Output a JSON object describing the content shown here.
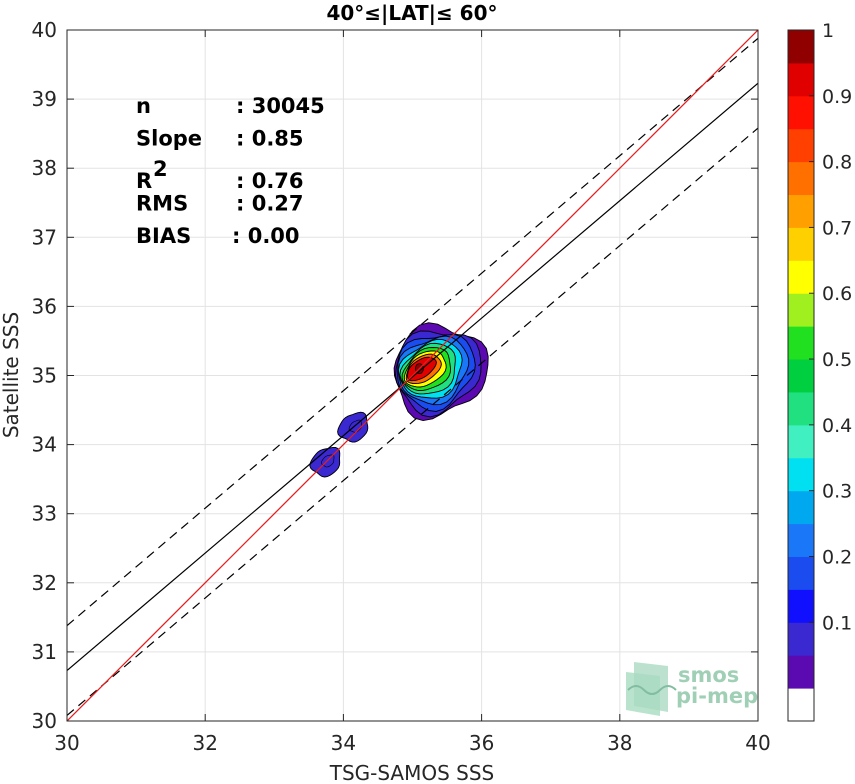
{
  "chart_data": {
    "type": "contour-scatter",
    "title": "40°≤|LAT|≤ 60°",
    "xlabel": "TSG-SAMOS SSS",
    "ylabel": "Satellite SSS",
    "xlim": [
      30,
      40
    ],
    "ylim": [
      30,
      40
    ],
    "xticks": [
      "30",
      "32",
      "34",
      "36",
      "38",
      "40"
    ],
    "yticks": [
      "30",
      "31",
      "32",
      "33",
      "34",
      "35",
      "36",
      "37",
      "38",
      "39",
      "40"
    ],
    "grid": true,
    "stats": [
      {
        "label": "n",
        "value": ": 30045"
      },
      {
        "label": "Slope",
        "value": ": 0.85"
      },
      {
        "label": "R",
        "sup": "2",
        "value": ": 0.76"
      },
      {
        "label": "RMS",
        "value": ": 0.27"
      },
      {
        "label": "BIAS",
        "value": ": 0.00"
      }
    ],
    "lines": {
      "identity": {
        "slope": 1,
        "intercept": 0,
        "color": "#e02020"
      },
      "regression": {
        "slope": 0.85,
        "intercept": 5.23,
        "color": "#000000"
      },
      "confidence_offset": 0.65
    },
    "density_clusters": [
      {
        "center": [
          35.1,
          35.1
        ],
        "levels": 10
      },
      {
        "center": [
          34.15,
          34.25
        ],
        "levels": 1
      },
      {
        "center": [
          33.75,
          33.75
        ],
        "levels": 1
      }
    ],
    "colorbar": {
      "range": [
        0,
        1
      ],
      "ticks": [
        "0.1",
        "0.2",
        "0.3",
        "0.4",
        "0.5",
        "0.6",
        "0.7",
        "0.8",
        "0.9",
        "1"
      ],
      "colors": [
        "#ffffff",
        "#5a0ab0",
        "#3a28d0",
        "#1010ff",
        "#1a4cf0",
        "#1a78f8",
        "#00a8f0",
        "#00e0f0",
        "#40f0c0",
        "#20e080",
        "#00d040",
        "#20e020",
        "#a0f020",
        "#ffff00",
        "#ffd000",
        "#ffa000",
        "#ff7000",
        "#ff4000",
        "#ff1000",
        "#e00000",
        "#900000"
      ]
    }
  },
  "watermark": {
    "line1": "smos",
    "line2": "pi-mep"
  }
}
